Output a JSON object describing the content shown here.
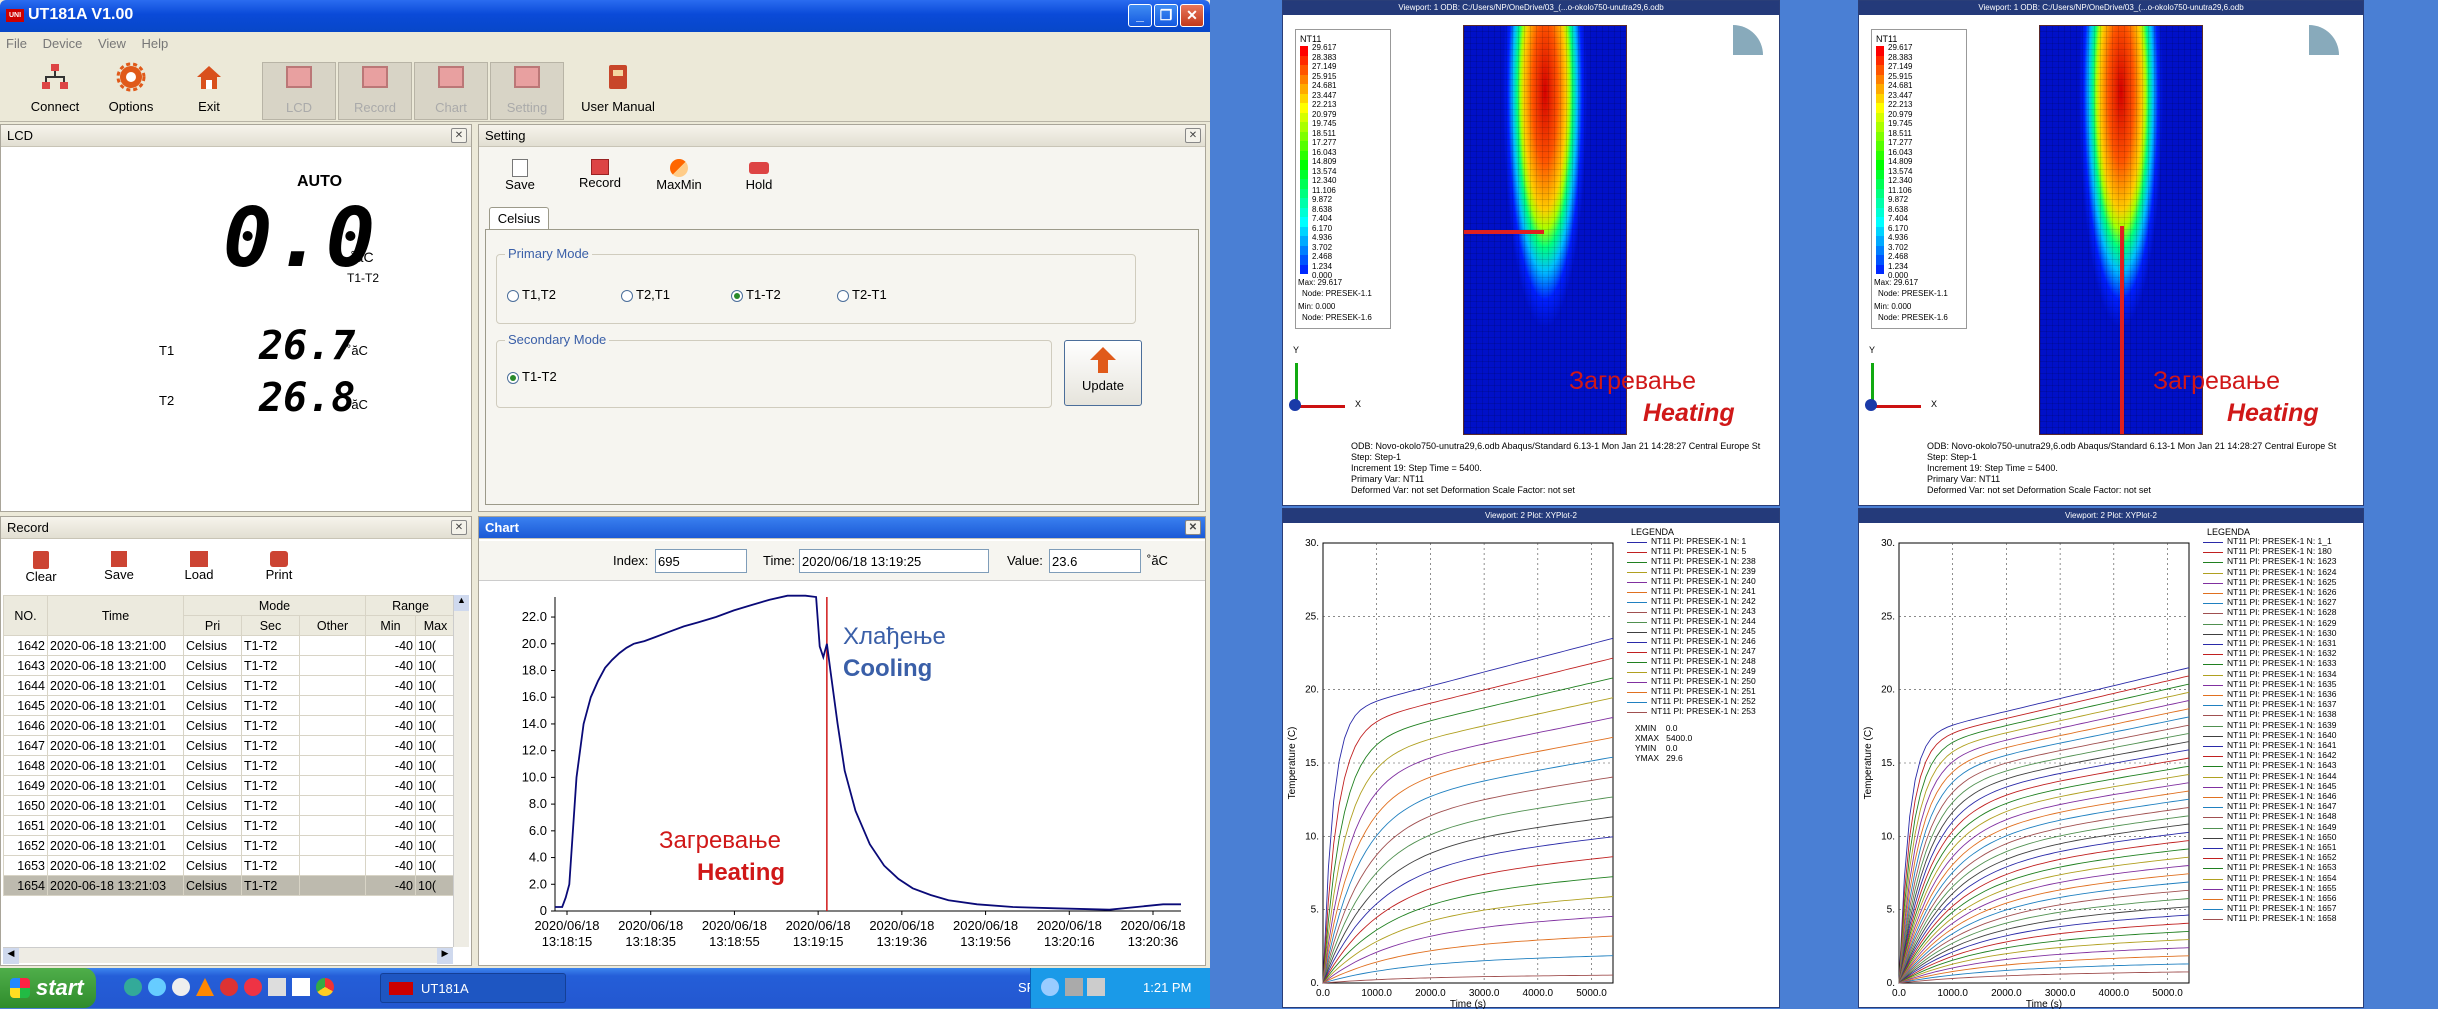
{
  "window": {
    "title": "UT181A V1.00",
    "min": "_",
    "max": "❐",
    "close": "✕"
  },
  "menu": [
    "File",
    "Device",
    "View",
    "Help"
  ],
  "toolbar": {
    "connect": "Connect",
    "options": "Options",
    "exit": "Exit",
    "lcd": "LCD",
    "record": "Record",
    "chart": "Chart",
    "setting": "Setting",
    "manual": "User Manual"
  },
  "lcd": {
    "title": "LCD",
    "mode": "AUTO",
    "main_value": "0.0",
    "main_unit": "˚ăC",
    "main_sub": "T1-T2",
    "t1_label": "T1",
    "t1_value": "26.7",
    "t1_unit": "˚ăC",
    "t2_label": "T2",
    "t2_value": "26.8",
    "t2_unit": "˚ăC"
  },
  "setting": {
    "title": "Setting",
    "save": "Save",
    "record": "Record",
    "maxmin": "MaxMin",
    "hold": "Hold",
    "tab": "Celsius",
    "primary_label": "Primary Mode",
    "primary_opts": [
      "T1,T2",
      "T2,T1",
      "T1-T2",
      "T2-T1"
    ],
    "secondary_label": "Secondary Mode",
    "secondary_opt": "T1-T2",
    "update": "Update"
  },
  "record": {
    "title": "Record",
    "clear": "Clear",
    "save": "Save",
    "load": "Load",
    "print": "Print",
    "headers": {
      "no": "NO.",
      "time": "Time",
      "mode": "Mode",
      "range": "Range",
      "pri": "Pri",
      "sec": "Sec",
      "other": "Other",
      "min": "Min",
      "max": "Max"
    },
    "rows": [
      [
        "1642",
        "2020-06-18 13:21:00",
        "Celsius",
        "T1-T2",
        "",
        "-40",
        "10("
      ],
      [
        "1643",
        "2020-06-18 13:21:00",
        "Celsius",
        "T1-T2",
        "",
        "-40",
        "10("
      ],
      [
        "1644",
        "2020-06-18 13:21:01",
        "Celsius",
        "T1-T2",
        "",
        "-40",
        "10("
      ],
      [
        "1645",
        "2020-06-18 13:21:01",
        "Celsius",
        "T1-T2",
        "",
        "-40",
        "10("
      ],
      [
        "1646",
        "2020-06-18 13:21:01",
        "Celsius",
        "T1-T2",
        "",
        "-40",
        "10("
      ],
      [
        "1647",
        "2020-06-18 13:21:01",
        "Celsius",
        "T1-T2",
        "",
        "-40",
        "10("
      ],
      [
        "1648",
        "2020-06-18 13:21:01",
        "Celsius",
        "T1-T2",
        "",
        "-40",
        "10("
      ],
      [
        "1649",
        "2020-06-18 13:21:01",
        "Celsius",
        "T1-T2",
        "",
        "-40",
        "10("
      ],
      [
        "1650",
        "2020-06-18 13:21:01",
        "Celsius",
        "T1-T2",
        "",
        "-40",
        "10("
      ],
      [
        "1651",
        "2020-06-18 13:21:01",
        "Celsius",
        "T1-T2",
        "",
        "-40",
        "10("
      ],
      [
        "1652",
        "2020-06-18 13:21:01",
        "Celsius",
        "T1-T2",
        "",
        "-40",
        "10("
      ],
      [
        "1653",
        "2020-06-18 13:21:02",
        "Celsius",
        "T1-T2",
        "",
        "-40",
        "10("
      ],
      [
        "1654",
        "2020-06-18 13:21:03",
        "Celsius",
        "T1-T2",
        "",
        "-40",
        "10("
      ]
    ]
  },
  "chart": {
    "title": "Chart",
    "index_label": "Index:",
    "index_value": "695",
    "time_label": "Time:",
    "time_value": "2020/06/18 13:19:25",
    "value_label": "Value:",
    "value_value": "23.6",
    "unit": "˚ăC",
    "cool_sr": "Хлађење",
    "cool_en": "Cooling",
    "heat_sr": "Загревање",
    "heat_en": "Heating"
  },
  "chart_data": {
    "type": "line",
    "yticks": [
      "0",
      "2.0",
      "4.0",
      "6.0",
      "8.0",
      "10.0",
      "12.0",
      "14.0",
      "16.0",
      "18.0",
      "20.0",
      "22.0"
    ],
    "ylim": [
      0,
      23.5
    ],
    "xticks": [
      [
        "2020/06/18",
        "13:18:15"
      ],
      [
        "2020/06/18",
        "13:18:35"
      ],
      [
        "2020/06/18",
        "13:18:55"
      ],
      [
        "2020/06/18",
        "13:19:15"
      ],
      [
        "2020/06/18",
        "13:19:36"
      ],
      [
        "2020/06/18",
        "13:19:56"
      ],
      [
        "2020/06/18",
        "13:20:16"
      ],
      [
        "2020/06/18",
        "13:20:36"
      ]
    ],
    "xlim": [
      0,
      175
    ],
    "marker_x": 76,
    "x": [
      0,
      2,
      3,
      4,
      5,
      6,
      8,
      10,
      12,
      14,
      16,
      18,
      20,
      22,
      25,
      28,
      32,
      36,
      40,
      45,
      50,
      55,
      60,
      65,
      70,
      73,
      74,
      75,
      76,
      77,
      79,
      81,
      84,
      88,
      92,
      96,
      100,
      105,
      110,
      118,
      128,
      140,
      155,
      170,
      175
    ],
    "y": [
      0.3,
      0.3,
      1.0,
      2.0,
      6.0,
      10.0,
      14.0,
      16.0,
      17.2,
      18.2,
      18.8,
      19.3,
      19.7,
      20.0,
      20.2,
      20.5,
      20.9,
      21.3,
      21.6,
      22.0,
      22.5,
      22.9,
      23.3,
      23.6,
      23.6,
      23.5,
      19.8,
      19.0,
      20.0,
      18.0,
      14.0,
      10.5,
      7.5,
      5.0,
      3.4,
      2.4,
      1.7,
      1.2,
      0.8,
      0.5,
      0.3,
      0.2,
      0.1,
      0.5,
      0.5
    ]
  },
  "taskbar": {
    "start": "start",
    "app": "UT181A",
    "lang": "SR",
    "clock": "1:21 PM"
  },
  "fe": {
    "vp1": "Viewport: 1    ODB: C:/Users/NP/OneDrive/03_(...o-okolo750-unutra29,6.odb",
    "legend_title": "NT11",
    "legend_values": [
      "29.617",
      "28.383",
      "27.149",
      "25.915",
      "24.681",
      "23.447",
      "22.213",
      "20.979",
      "19.745",
      "18.511",
      "17.277",
      "16.043",
      "14.809",
      "13.574",
      "12.340",
      "11.106",
      "9.872",
      "8.638",
      "7.404",
      "6.170",
      "4.936",
      "3.702",
      "2.468",
      "1.234",
      "0.000"
    ],
    "legend_max": "Max: 29.617",
    "legend_maxnode": "Node: PRESEK-1.1",
    "legend_min": "Min: 0.000",
    "legend_minnode": "Node: PRESEK-1.6",
    "heat_sr": "Загревање",
    "heat_en": "Heating",
    "footer1": "ODB: Novo-okolo750-unutra29,6.odb     Abaqus/Standard 6.13-1     Mon Jan 21 14:28:27 Central Europe St",
    "footer2": "Step: Step-1",
    "footer3": "Increment    19: Step Time =     5400.",
    "footer4": "Primary Var: NT11",
    "footer5": "Deformed Var: not set   Deformation Scale Factor: not set",
    "vp2": "Viewport: 2    Plot: XYPlot-2",
    "xlabel": "Time (s)",
    "ylabel": "Temperature (C)",
    "legend_head": "LEGENDA",
    "yticks": [
      "0.",
      "5.",
      "10.",
      "15.",
      "20.",
      "25.",
      "30."
    ],
    "xticks": [
      "0.0",
      "1000.0",
      "2000.0",
      "3000.0",
      "4000.0",
      "5000.0"
    ],
    "legend1": [
      "NT11 PI: PRESEK-1 N: 1",
      "NT11 PI: PRESEK-1 N: 5",
      "NT11 PI: PRESEK-1 N: 238",
      "NT11 PI: PRESEK-1 N: 239",
      "NT11 PI: PRESEK-1 N: 240",
      "NT11 PI: PRESEK-1 N: 241",
      "NT11 PI: PRESEK-1 N: 242",
      "NT11 PI: PRESEK-1 N: 243",
      "NT11 PI: PRESEK-1 N: 244",
      "NT11 PI: PRESEK-1 N: 245",
      "NT11 PI: PRESEK-1 N: 246",
      "NT11 PI: PRESEK-1 N: 247",
      "NT11 PI: PRESEK-1 N: 248",
      "NT11 PI: PRESEK-1 N: 249",
      "NT11 PI: PRESEK-1 N: 250",
      "NT11 PI: PRESEK-1 N: 251",
      "NT11 PI: PRESEK-1 N: 252",
      "NT11 PI: PRESEK-1 N: 253"
    ],
    "stats1": [
      "XMIN    0.0",
      "XMAX   5400.0",
      "YMIN    0.0",
      "YMAX   29.6"
    ],
    "legend2": [
      "NT11 PI: PRESEK-1 N: 1_1",
      "NT11 PI: PRESEK-1 N: 180",
      "NT11 PI: PRESEK-1 N: 1623",
      "NT11 PI: PRESEK-1 N: 1624",
      "NT11 PI: PRESEK-1 N: 1625",
      "NT11 PI: PRESEK-1 N: 1626",
      "NT11 PI: PRESEK-1 N: 1627",
      "NT11 PI: PRESEK-1 N: 1628",
      "NT11 PI: PRESEK-1 N: 1629",
      "NT11 PI: PRESEK-1 N: 1630",
      "NT11 PI: PRESEK-1 N: 1631",
      "NT11 PI: PRESEK-1 N: 1632",
      "NT11 PI: PRESEK-1 N: 1633",
      "NT11 PI: PRESEK-1 N: 1634",
      "NT11 PI: PRESEK-1 N: 1635",
      "NT11 PI: PRESEK-1 N: 1636",
      "NT11 PI: PRESEK-1 N: 1637",
      "NT11 PI: PRESEK-1 N: 1638",
      "NT11 PI: PRESEK-1 N: 1639",
      "NT11 PI: PRESEK-1 N: 1640",
      "NT11 PI: PRESEK-1 N: 1641",
      "NT11 PI: PRESEK-1 N: 1642",
      "NT11 PI: PRESEK-1 N: 1643",
      "NT11 PI: PRESEK-1 N: 1644",
      "NT11 PI: PRESEK-1 N: 1645",
      "NT11 PI: PRESEK-1 N: 1646",
      "NT11 PI: PRESEK-1 N: 1647",
      "NT11 PI: PRESEK-1 N: 1648",
      "NT11 PI: PRESEK-1 N: 1649",
      "NT11 PI: PRESEK-1 N: 1650",
      "NT11 PI: PRESEK-1 N: 1651",
      "NT11 PI: PRESEK-1 N: 1652",
      "NT11 PI: PRESEK-1 N: 1653",
      "NT11 PI: PRESEK-1 N: 1654",
      "NT11 PI: PRESEK-1 N: 1655",
      "NT11 PI: PRESEK-1 N: 1656",
      "NT11 PI: PRESEK-1 N: 1657",
      "NT11 PI: PRESEK-1 N: 1658"
    ],
    "axis_x": "X",
    "axis_y": "Y"
  }
}
